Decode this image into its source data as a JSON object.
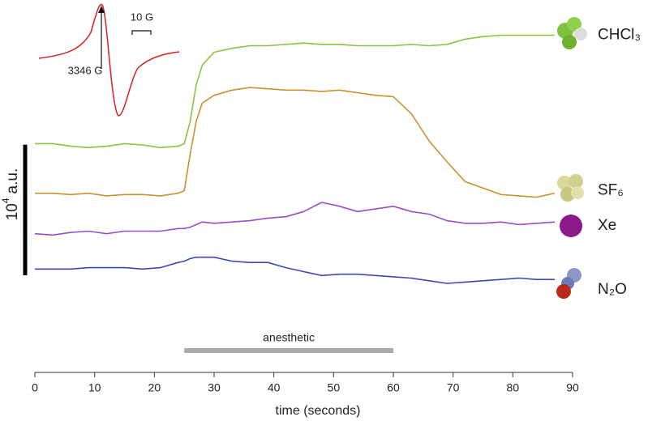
{
  "chart_data": {
    "type": "line",
    "x_label": "time (seconds)",
    "x": [
      0,
      3,
      6,
      9,
      12,
      15,
      18,
      21,
      24,
      25,
      26,
      27,
      28,
      30,
      33,
      36,
      39,
      42,
      45,
      48,
      51,
      54,
      57,
      60,
      63,
      66,
      69,
      72,
      75,
      78,
      81,
      84,
      87
    ],
    "xlim": [
      0,
      90
    ],
    "xticks": [
      0,
      10,
      20,
      30,
      40,
      50,
      60,
      70,
      80,
      90
    ],
    "ylim": [
      0,
      24800
    ],
    "series": [
      {
        "name": "CHCl₃",
        "color": "#8ac43f",
        "values": [
          13800,
          13800,
          13600,
          13500,
          13600,
          13800,
          13700,
          13500,
          13600,
          13800,
          15500,
          18300,
          19800,
          20800,
          21100,
          21300,
          21300,
          21400,
          21500,
          21400,
          21400,
          21300,
          21300,
          21300,
          21400,
          21300,
          21400,
          21800,
          22000,
          22100,
          22100,
          22100,
          22100
        ]
      },
      {
        "name": "SF₆",
        "color": "#c8922e",
        "values": [
          10000,
          10000,
          9900,
          10000,
          9800,
          9900,
          9900,
          9800,
          10000,
          10200,
          13000,
          15500,
          16900,
          17500,
          17900,
          18100,
          18000,
          17900,
          17900,
          17800,
          17900,
          17700,
          17500,
          17400,
          16100,
          14000,
          12400,
          10900,
          10400,
          9900,
          9800,
          9700,
          10000
        ]
      },
      {
        "name": "Xe",
        "color": "#9b4fc6",
        "values": [
          6900,
          6800,
          7000,
          7100,
          6900,
          7100,
          7100,
          7100,
          7300,
          7300,
          7400,
          7600,
          7800,
          7700,
          7800,
          7900,
          8100,
          8200,
          8600,
          9300,
          9000,
          8600,
          8800,
          9000,
          8600,
          8400,
          7900,
          7700,
          7700,
          7800,
          7600,
          7700,
          7800
        ]
      },
      {
        "name": "N₂O",
        "color": "#3c4ab0",
        "values": [
          4200,
          4200,
          4200,
          4300,
          4300,
          4300,
          4200,
          4300,
          4700,
          4800,
          5000,
          5100,
          5100,
          5100,
          4800,
          4700,
          4700,
          4300,
          4000,
          3700,
          3800,
          3800,
          3700,
          3600,
          3500,
          3300,
          3100,
          3200,
          3300,
          3400,
          3500,
          3400,
          3400
        ]
      }
    ],
    "scale_bar": {
      "length": 10000,
      "label": "10",
      "exponent": "4",
      "unit": "a.u."
    },
    "anesthetic": {
      "label": "anesthetic",
      "start": 25,
      "end": 60
    },
    "inset": {
      "field_label": "3346 G",
      "width_label": "10 G"
    }
  }
}
